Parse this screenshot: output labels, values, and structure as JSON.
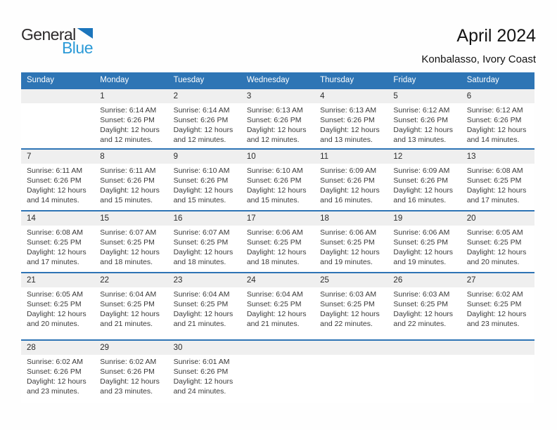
{
  "logo": {
    "part1": "General",
    "part2": "Blue",
    "triangle_color": "#1b75bc",
    "blue_color": "#2b9ad7"
  },
  "header": {
    "title": "April 2024",
    "subtitle": "Konbalasso, Ivory Coast"
  },
  "colors": {
    "header_bg": "#2e75b5",
    "separator": "#2e74b5",
    "day_strip_bg": "#efefef",
    "body_text": "#3a3a3a"
  },
  "calendar": {
    "weekdays": [
      "Sunday",
      "Monday",
      "Tuesday",
      "Wednesday",
      "Thursday",
      "Friday",
      "Saturday"
    ],
    "weeks": [
      [
        null,
        {
          "day": 1,
          "lines": [
            "Sunrise: 6:14 AM",
            "Sunset: 6:26 PM",
            "Daylight: 12 hours",
            "and 12 minutes."
          ]
        },
        {
          "day": 2,
          "lines": [
            "Sunrise: 6:14 AM",
            "Sunset: 6:26 PM",
            "Daylight: 12 hours",
            "and 12 minutes."
          ]
        },
        {
          "day": 3,
          "lines": [
            "Sunrise: 6:13 AM",
            "Sunset: 6:26 PM",
            "Daylight: 12 hours",
            "and 12 minutes."
          ]
        },
        {
          "day": 4,
          "lines": [
            "Sunrise: 6:13 AM",
            "Sunset: 6:26 PM",
            "Daylight: 12 hours",
            "and 13 minutes."
          ]
        },
        {
          "day": 5,
          "lines": [
            "Sunrise: 6:12 AM",
            "Sunset: 6:26 PM",
            "Daylight: 12 hours",
            "and 13 minutes."
          ]
        },
        {
          "day": 6,
          "lines": [
            "Sunrise: 6:12 AM",
            "Sunset: 6:26 PM",
            "Daylight: 12 hours",
            "and 14 minutes."
          ]
        }
      ],
      [
        {
          "day": 7,
          "lines": [
            "Sunrise: 6:11 AM",
            "Sunset: 6:26 PM",
            "Daylight: 12 hours",
            "and 14 minutes."
          ]
        },
        {
          "day": 8,
          "lines": [
            "Sunrise: 6:11 AM",
            "Sunset: 6:26 PM",
            "Daylight: 12 hours",
            "and 15 minutes."
          ]
        },
        {
          "day": 9,
          "lines": [
            "Sunrise: 6:10 AM",
            "Sunset: 6:26 PM",
            "Daylight: 12 hours",
            "and 15 minutes."
          ]
        },
        {
          "day": 10,
          "lines": [
            "Sunrise: 6:10 AM",
            "Sunset: 6:26 PM",
            "Daylight: 12 hours",
            "and 15 minutes."
          ]
        },
        {
          "day": 11,
          "lines": [
            "Sunrise: 6:09 AM",
            "Sunset: 6:26 PM",
            "Daylight: 12 hours",
            "and 16 minutes."
          ]
        },
        {
          "day": 12,
          "lines": [
            "Sunrise: 6:09 AM",
            "Sunset: 6:26 PM",
            "Daylight: 12 hours",
            "and 16 minutes."
          ]
        },
        {
          "day": 13,
          "lines": [
            "Sunrise: 6:08 AM",
            "Sunset: 6:25 PM",
            "Daylight: 12 hours",
            "and 17 minutes."
          ]
        }
      ],
      [
        {
          "day": 14,
          "lines": [
            "Sunrise: 6:08 AM",
            "Sunset: 6:25 PM",
            "Daylight: 12 hours",
            "and 17 minutes."
          ]
        },
        {
          "day": 15,
          "lines": [
            "Sunrise: 6:07 AM",
            "Sunset: 6:25 PM",
            "Daylight: 12 hours",
            "and 18 minutes."
          ]
        },
        {
          "day": 16,
          "lines": [
            "Sunrise: 6:07 AM",
            "Sunset: 6:25 PM",
            "Daylight: 12 hours",
            "and 18 minutes."
          ]
        },
        {
          "day": 17,
          "lines": [
            "Sunrise: 6:06 AM",
            "Sunset: 6:25 PM",
            "Daylight: 12 hours",
            "and 18 minutes."
          ]
        },
        {
          "day": 18,
          "lines": [
            "Sunrise: 6:06 AM",
            "Sunset: 6:25 PM",
            "Daylight: 12 hours",
            "and 19 minutes."
          ]
        },
        {
          "day": 19,
          "lines": [
            "Sunrise: 6:06 AM",
            "Sunset: 6:25 PM",
            "Daylight: 12 hours",
            "and 19 minutes."
          ]
        },
        {
          "day": 20,
          "lines": [
            "Sunrise: 6:05 AM",
            "Sunset: 6:25 PM",
            "Daylight: 12 hours",
            "and 20 minutes."
          ]
        }
      ],
      [
        {
          "day": 21,
          "lines": [
            "Sunrise: 6:05 AM",
            "Sunset: 6:25 PM",
            "Daylight: 12 hours",
            "and 20 minutes."
          ]
        },
        {
          "day": 22,
          "lines": [
            "Sunrise: 6:04 AM",
            "Sunset: 6:25 PM",
            "Daylight: 12 hours",
            "and 21 minutes."
          ]
        },
        {
          "day": 23,
          "lines": [
            "Sunrise: 6:04 AM",
            "Sunset: 6:25 PM",
            "Daylight: 12 hours",
            "and 21 minutes."
          ]
        },
        {
          "day": 24,
          "lines": [
            "Sunrise: 6:04 AM",
            "Sunset: 6:25 PM",
            "Daylight: 12 hours",
            "and 21 minutes."
          ]
        },
        {
          "day": 25,
          "lines": [
            "Sunrise: 6:03 AM",
            "Sunset: 6:25 PM",
            "Daylight: 12 hours",
            "and 22 minutes."
          ]
        },
        {
          "day": 26,
          "lines": [
            "Sunrise: 6:03 AM",
            "Sunset: 6:25 PM",
            "Daylight: 12 hours",
            "and 22 minutes."
          ]
        },
        {
          "day": 27,
          "lines": [
            "Sunrise: 6:02 AM",
            "Sunset: 6:25 PM",
            "Daylight: 12 hours",
            "and 23 minutes."
          ]
        }
      ],
      [
        {
          "day": 28,
          "lines": [
            "Sunrise: 6:02 AM",
            "Sunset: 6:26 PM",
            "Daylight: 12 hours",
            "and 23 minutes."
          ]
        },
        {
          "day": 29,
          "lines": [
            "Sunrise: 6:02 AM",
            "Sunset: 6:26 PM",
            "Daylight: 12 hours",
            "and 23 minutes."
          ]
        },
        {
          "day": 30,
          "lines": [
            "Sunrise: 6:01 AM",
            "Sunset: 6:26 PM",
            "Daylight: 12 hours",
            "and 24 minutes."
          ]
        },
        null,
        null,
        null,
        null
      ]
    ]
  }
}
